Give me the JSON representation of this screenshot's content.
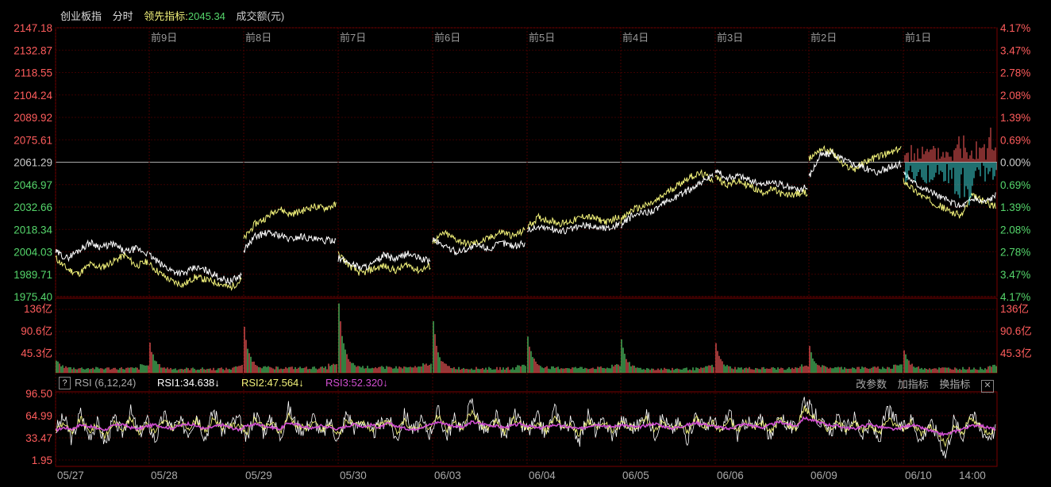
{
  "header": {
    "index_name": "创业板指",
    "mode": "分时",
    "lead_label": "领先指标:",
    "lead_value": "2045.34",
    "volume_label": "成交额(元)"
  },
  "rsi_bar": {
    "help": "?",
    "name": "RSI (6,12,24)",
    "rsi1": "RSI1:34.638↓",
    "rsi2": "RSI2:47.564↓",
    "rsi3": "RSI3:52.320↓",
    "buttons": [
      "改参数",
      "加指标",
      "换指标"
    ],
    "close": "✕"
  },
  "colors": {
    "up": "#ff5c5c",
    "down": "#55d66b",
    "price": "#ffffff",
    "lead": "#f2f27a",
    "rsi1": "#ffffff",
    "rsi2": "#f2f27a",
    "rsi3": "#d24fd2",
    "cyan": "#3fe0e0",
    "grid": "#3a0000"
  },
  "chart_data": [
    {
      "type": "line",
      "panel": "price",
      "ylim": [
        1975.4,
        2147.18
      ],
      "y_ticks_left": [
        "2147.18",
        "2132.87",
        "2118.55",
        "2104.24",
        "2089.92",
        "2075.61",
        "2061.29",
        "2046.97",
        "2032.66",
        "2018.34",
        "2004.03",
        "1989.71",
        "1975.40"
      ],
      "y_ticks_right": [
        "4.17%",
        "3.47%",
        "2.78%",
        "2.08%",
        "1.39%",
        "0.69%",
        "0.00%",
        "0.69%",
        "1.39%",
        "2.08%",
        "2.78%",
        "3.47%",
        "4.17%"
      ],
      "day_labels": [
        "前9日",
        "前8日",
        "前7日",
        "前6日",
        "前5日",
        "前4日",
        "前3日",
        "前2日",
        "前1日"
      ],
      "x_labels": [
        "05/27",
        "05/28",
        "05/29",
        "05/30",
        "06/03",
        "06/04",
        "06/05",
        "06/06",
        "06/09",
        "06/10",
        "14:00"
      ],
      "series": [
        {
          "day_points": [
            [
              2000,
              1993,
              1990,
              1996,
              1994,
              1998,
              2002,
              1995,
              1998
            ],
            [
              1996,
              1990,
              1985,
              1983,
              1988,
              1986,
              1984,
              1981,
              1986
            ],
            [
              2012,
              2022,
              2026,
              2032,
              2028,
              2030,
              2033,
              2032,
              2034
            ],
            [
              2003,
              1995,
              1990,
              1993,
              1995,
              1992,
              1996,
              1992,
              1995
            ],
            [
              2010,
              2016,
              2012,
              2009,
              2010,
              2013,
              2017,
              2014,
              2018
            ],
            [
              2020,
              2026,
              2024,
              2022,
              2024,
              2027,
              2025,
              2023,
              2027
            ],
            [
              2024,
              2031,
              2033,
              2036,
              2042,
              2047,
              2052,
              2054,
              2050
            ],
            [
              2052,
              2047,
              2049,
              2046,
              2042,
              2044,
              2040,
              2041,
              2042
            ],
            [
              2063,
              2070,
              2068,
              2059,
              2057,
              2062,
              2065,
              2067,
              2070
            ],
            [
              2050,
              2043,
              2038,
              2034,
              2030,
              2027,
              2040,
              2036,
              2033
            ]
          ]
        },
        {
          "day_points": [
            [
              2004,
              2000,
              2005,
              2010,
              2007,
              2009,
              2004,
              2006,
              2003
            ],
            [
              2002,
              1996,
              1992,
              1990,
              1994,
              1992,
              1988,
              1985,
              1989
            ],
            [
              2005,
              2014,
              2016,
              2015,
              2012,
              2014,
              2012,
              2011,
              2012
            ],
            [
              2000,
              1997,
              1994,
              1996,
              2002,
              1999,
              2003,
              2000,
              1998
            ],
            [
              2012,
              2008,
              2004,
              2006,
              2008,
              2006,
              2010,
              2008,
              2009
            ],
            [
              2018,
              2020,
              2019,
              2017,
              2019,
              2021,
              2020,
              2019,
              2022
            ],
            [
              2021,
              2027,
              2029,
              2031,
              2036,
              2040,
              2044,
              2049,
              2052
            ],
            [
              2056,
              2051,
              2053,
              2050,
              2047,
              2049,
              2046,
              2044,
              2045
            ],
            [
              2052,
              2066,
              2067,
              2063,
              2060,
              2057,
              2055,
              2058,
              2060
            ],
            [
              2055,
              2048,
              2044,
              2040,
              2036,
              2033,
              2038,
              2036,
              2040
            ]
          ]
        }
      ]
    },
    {
      "type": "bar",
      "panel": "volume",
      "ylim": [
        0,
        136
      ],
      "y_ticks": [
        "136亿",
        "90.6亿",
        "45.3亿"
      ],
      "day_peaks": [
        26,
        60,
        92,
        140,
        104,
        74,
        68,
        58,
        52,
        47,
        36
      ],
      "day_base": [
        9,
        8,
        10,
        11,
        9,
        10,
        8,
        9,
        10,
        9,
        9
      ]
    },
    {
      "type": "line",
      "panel": "rsi",
      "ylim": [
        1.95,
        96.5
      ],
      "y_ticks": [
        "96.50",
        "64.99",
        "33.47",
        "1.95"
      ],
      "rsi1_points": [
        45,
        62,
        30,
        70,
        35,
        55,
        25,
        60,
        40,
        72,
        38,
        58,
        30,
        66,
        48,
        55,
        42,
        68,
        33,
        74,
        44,
        52,
        60,
        30,
        70,
        42,
        62,
        34,
        76,
        50,
        45,
        64,
        36,
        58,
        28,
        70,
        46,
        60,
        38,
        52,
        62,
        30,
        68,
        44,
        56,
        40,
        72,
        36,
        60,
        46,
        88,
        52,
        40,
        64,
        32,
        70,
        50,
        44,
        62,
        36,
        74,
        48,
        56,
        30,
        66,
        42,
        58,
        34,
        60,
        48,
        50,
        70,
        38,
        62,
        44,
        56,
        32,
        68,
        46,
        60,
        40,
        72,
        36,
        58,
        48,
        62,
        30,
        66,
        52,
        44,
        90,
        70,
        56,
        38,
        60,
        44,
        64,
        36,
        52,
        30,
        74,
        58,
        46,
        62,
        28,
        56,
        40,
        8,
        60,
        34,
        72,
        50,
        36,
        44
      ],
      "rsi3_points": [
        44,
        48,
        46,
        52,
        50,
        47,
        45,
        51,
        53,
        48,
        46,
        50,
        52,
        49,
        47,
        51,
        54,
        50,
        46,
        49,
        52,
        48,
        45,
        50,
        53,
        51,
        48,
        46,
        55,
        52,
        49,
        47,
        51,
        48,
        46,
        50,
        53,
        49,
        52,
        48,
        54,
        50,
        47,
        45,
        49,
        52,
        56,
        53,
        50,
        48,
        56,
        54,
        52,
        50,
        48,
        51,
        53,
        50,
        47,
        49,
        52,
        50,
        48,
        46,
        50,
        53,
        51,
        49,
        52,
        50,
        48,
        51,
        54,
        50,
        47,
        49,
        52,
        55,
        53,
        50,
        48,
        46,
        51,
        53,
        50,
        48,
        52,
        56,
        53,
        50,
        62,
        58,
        55,
        52,
        50,
        48,
        46,
        50,
        53,
        49,
        47,
        45,
        49,
        52,
        48,
        44,
        40,
        38,
        42,
        46,
        50,
        52,
        48,
        46
      ]
    }
  ]
}
